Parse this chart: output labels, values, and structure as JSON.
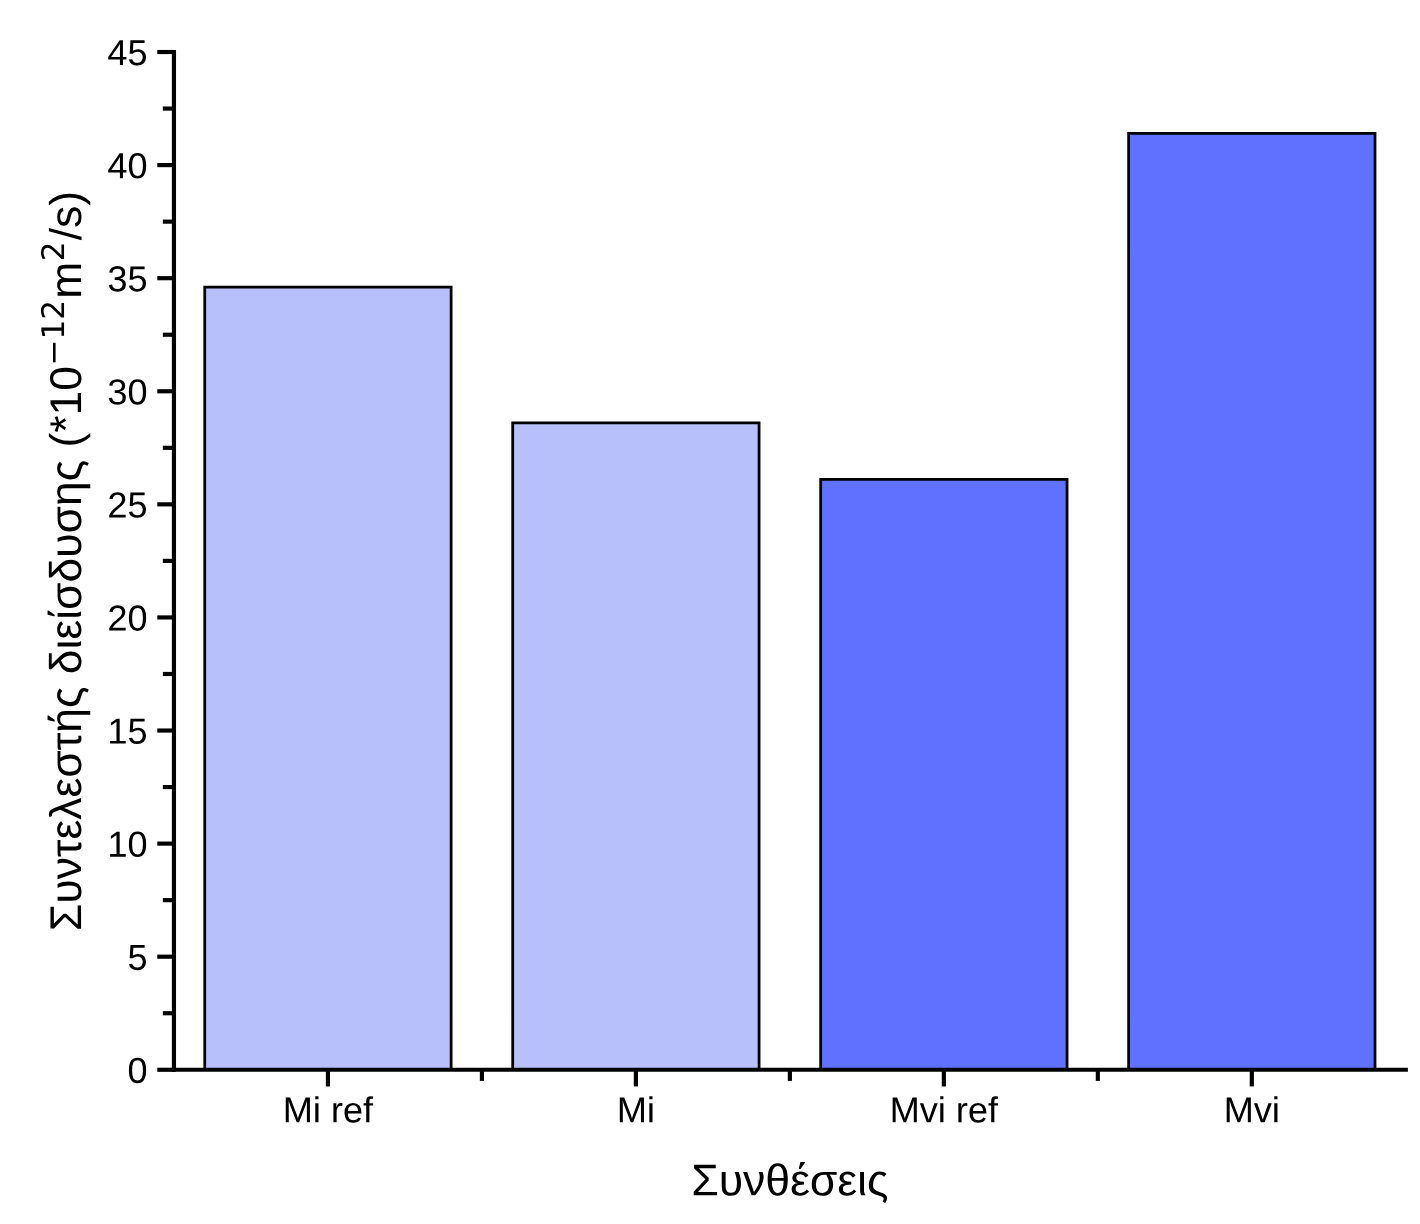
{
  "chart_data": {
    "type": "bar",
    "xlabel": "Συνθέσεις",
    "ylabel": "Συντελεστής διείσδυσης (*10$^{−12}$m$^{2}$/s)",
    "categories": [
      "Mi ref",
      "Mi",
      "Mvi ref",
      "Mvi"
    ],
    "values": [
      34.6,
      28.6,
      26.1,
      41.4
    ],
    "colors": [
      "#b8c0fc",
      "#b8c0fc",
      "#5f71fe",
      "#5f71fe"
    ],
    "ylim": [
      0,
      45
    ],
    "yticks": [
      0,
      5,
      10,
      15,
      20,
      25,
      30,
      35,
      40,
      45
    ],
    "grid": false
  }
}
